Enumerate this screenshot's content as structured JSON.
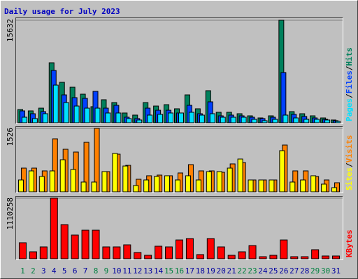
{
  "chart_data": {
    "type": "bar",
    "title": "Daily usage for July 2023",
    "categories": [
      "1",
      "2",
      "3",
      "4",
      "5",
      "6",
      "7",
      "8",
      "9",
      "10",
      "11",
      "12",
      "13",
      "14",
      "15",
      "16",
      "17",
      "18",
      "19",
      "20",
      "21",
      "22",
      "23",
      "24",
      "25",
      "26",
      "27",
      "28",
      "29",
      "30",
      "31"
    ],
    "category_colors": [
      "#008040",
      "#008040",
      "#0000a0",
      "#0000a0",
      "#0000a0",
      "#0000a0",
      "#0000a0",
      "#008040",
      "#008040",
      "#0000a0",
      "#0000a0",
      "#0000a0",
      "#0000a0",
      "#0000a0",
      "#008040",
      "#008040",
      "#0000a0",
      "#0000a0",
      "#0000a0",
      "#0000a0",
      "#0000a0",
      "#008040",
      "#008040",
      "#0000a0",
      "#0000a0",
      "#0000a0",
      "#0000a0",
      "#0000a0",
      "#008040",
      "#008040",
      "#0000a0"
    ],
    "legend_separator": "/",
    "panels": [
      {
        "ylim": [
          0,
          15632
        ],
        "yticks": [
          15632
        ],
        "series": [
          {
            "name": "Pages",
            "color": "#00e0ff",
            "values": [
              850,
              640,
              1380,
              5740,
              3080,
              2550,
              2230,
              2230,
              1490,
              1490,
              640,
              425,
              1170,
              1280,
              1490,
              1490,
              1600,
              1170,
              1380,
              850,
              850,
              850,
              530,
              320,
              530,
              1170,
              740,
              530,
              530,
              425,
              210
            ]
          },
          {
            "name": "Files",
            "color": "#0040ff",
            "values": [
              1810,
              1380,
              1700,
              7975,
              4250,
              3830,
              3720,
              4790,
              2230,
              2660,
              850,
              640,
              2230,
              1910,
              1910,
              1490,
              2660,
              1380,
              3190,
              1060,
              1170,
              1060,
              850,
              640,
              850,
              7660,
              1280,
              960,
              740,
              530,
              320
            ]
          },
          {
            "name": "Hits",
            "color": "#00805c",
            "values": [
              2020,
              1810,
              2230,
              9145,
              6170,
              5420,
              4360,
              2450,
              3510,
              3080,
              1490,
              1170,
              3080,
              2550,
              2760,
              2130,
              4250,
              2130,
              4890,
              1600,
              1600,
              1380,
              1060,
              740,
              1060,
              15632,
              1700,
              1380,
              1060,
              740,
              425
            ]
          }
        ]
      },
      {
        "ylim": [
          0,
          1526
        ],
        "yticks": [
          1526
        ],
        "series": [
          {
            "name": "Sites",
            "color": "#ffff00",
            "values": [
              285,
              503,
              369,
              503,
              771,
              537,
              235,
              235,
              486,
              922,
              620,
              151,
              285,
              369,
              386,
              285,
              386,
              285,
              486,
              486,
              570,
              788,
              285,
              285,
              285,
              989,
              235,
              285,
              386,
              185,
              101
            ]
          },
          {
            "name": "Visits",
            "color": "#ff8000",
            "values": [
              570,
              570,
              503,
              1274,
              1023,
              956,
              1190,
              1526,
              486,
              905,
              637,
              302,
              386,
              402,
              386,
              453,
              654,
              503,
              503,
              470,
              671,
              704,
              285,
              285,
              285,
              1124,
              503,
              503,
              369,
              285,
              218
            ]
          }
        ]
      },
      {
        "ylim": [
          0,
          1110258
        ],
        "yticks": [
          1110258
        ],
        "series": [
          {
            "name": "KBytes",
            "color": "#ff0000",
            "values": [
              293500,
              127600,
              217000,
              1110258,
              625000,
              434000,
              523000,
              523000,
              217000,
              217000,
              255000,
              115000,
              64000,
              230000,
              217000,
              344000,
              370000,
              76600,
              370000,
              217000,
              64000,
              127600,
              242000,
              38300,
              64000,
              344000,
              38300,
              38300,
              166000,
              51000,
              51000
            ]
          }
        ]
      }
    ]
  }
}
